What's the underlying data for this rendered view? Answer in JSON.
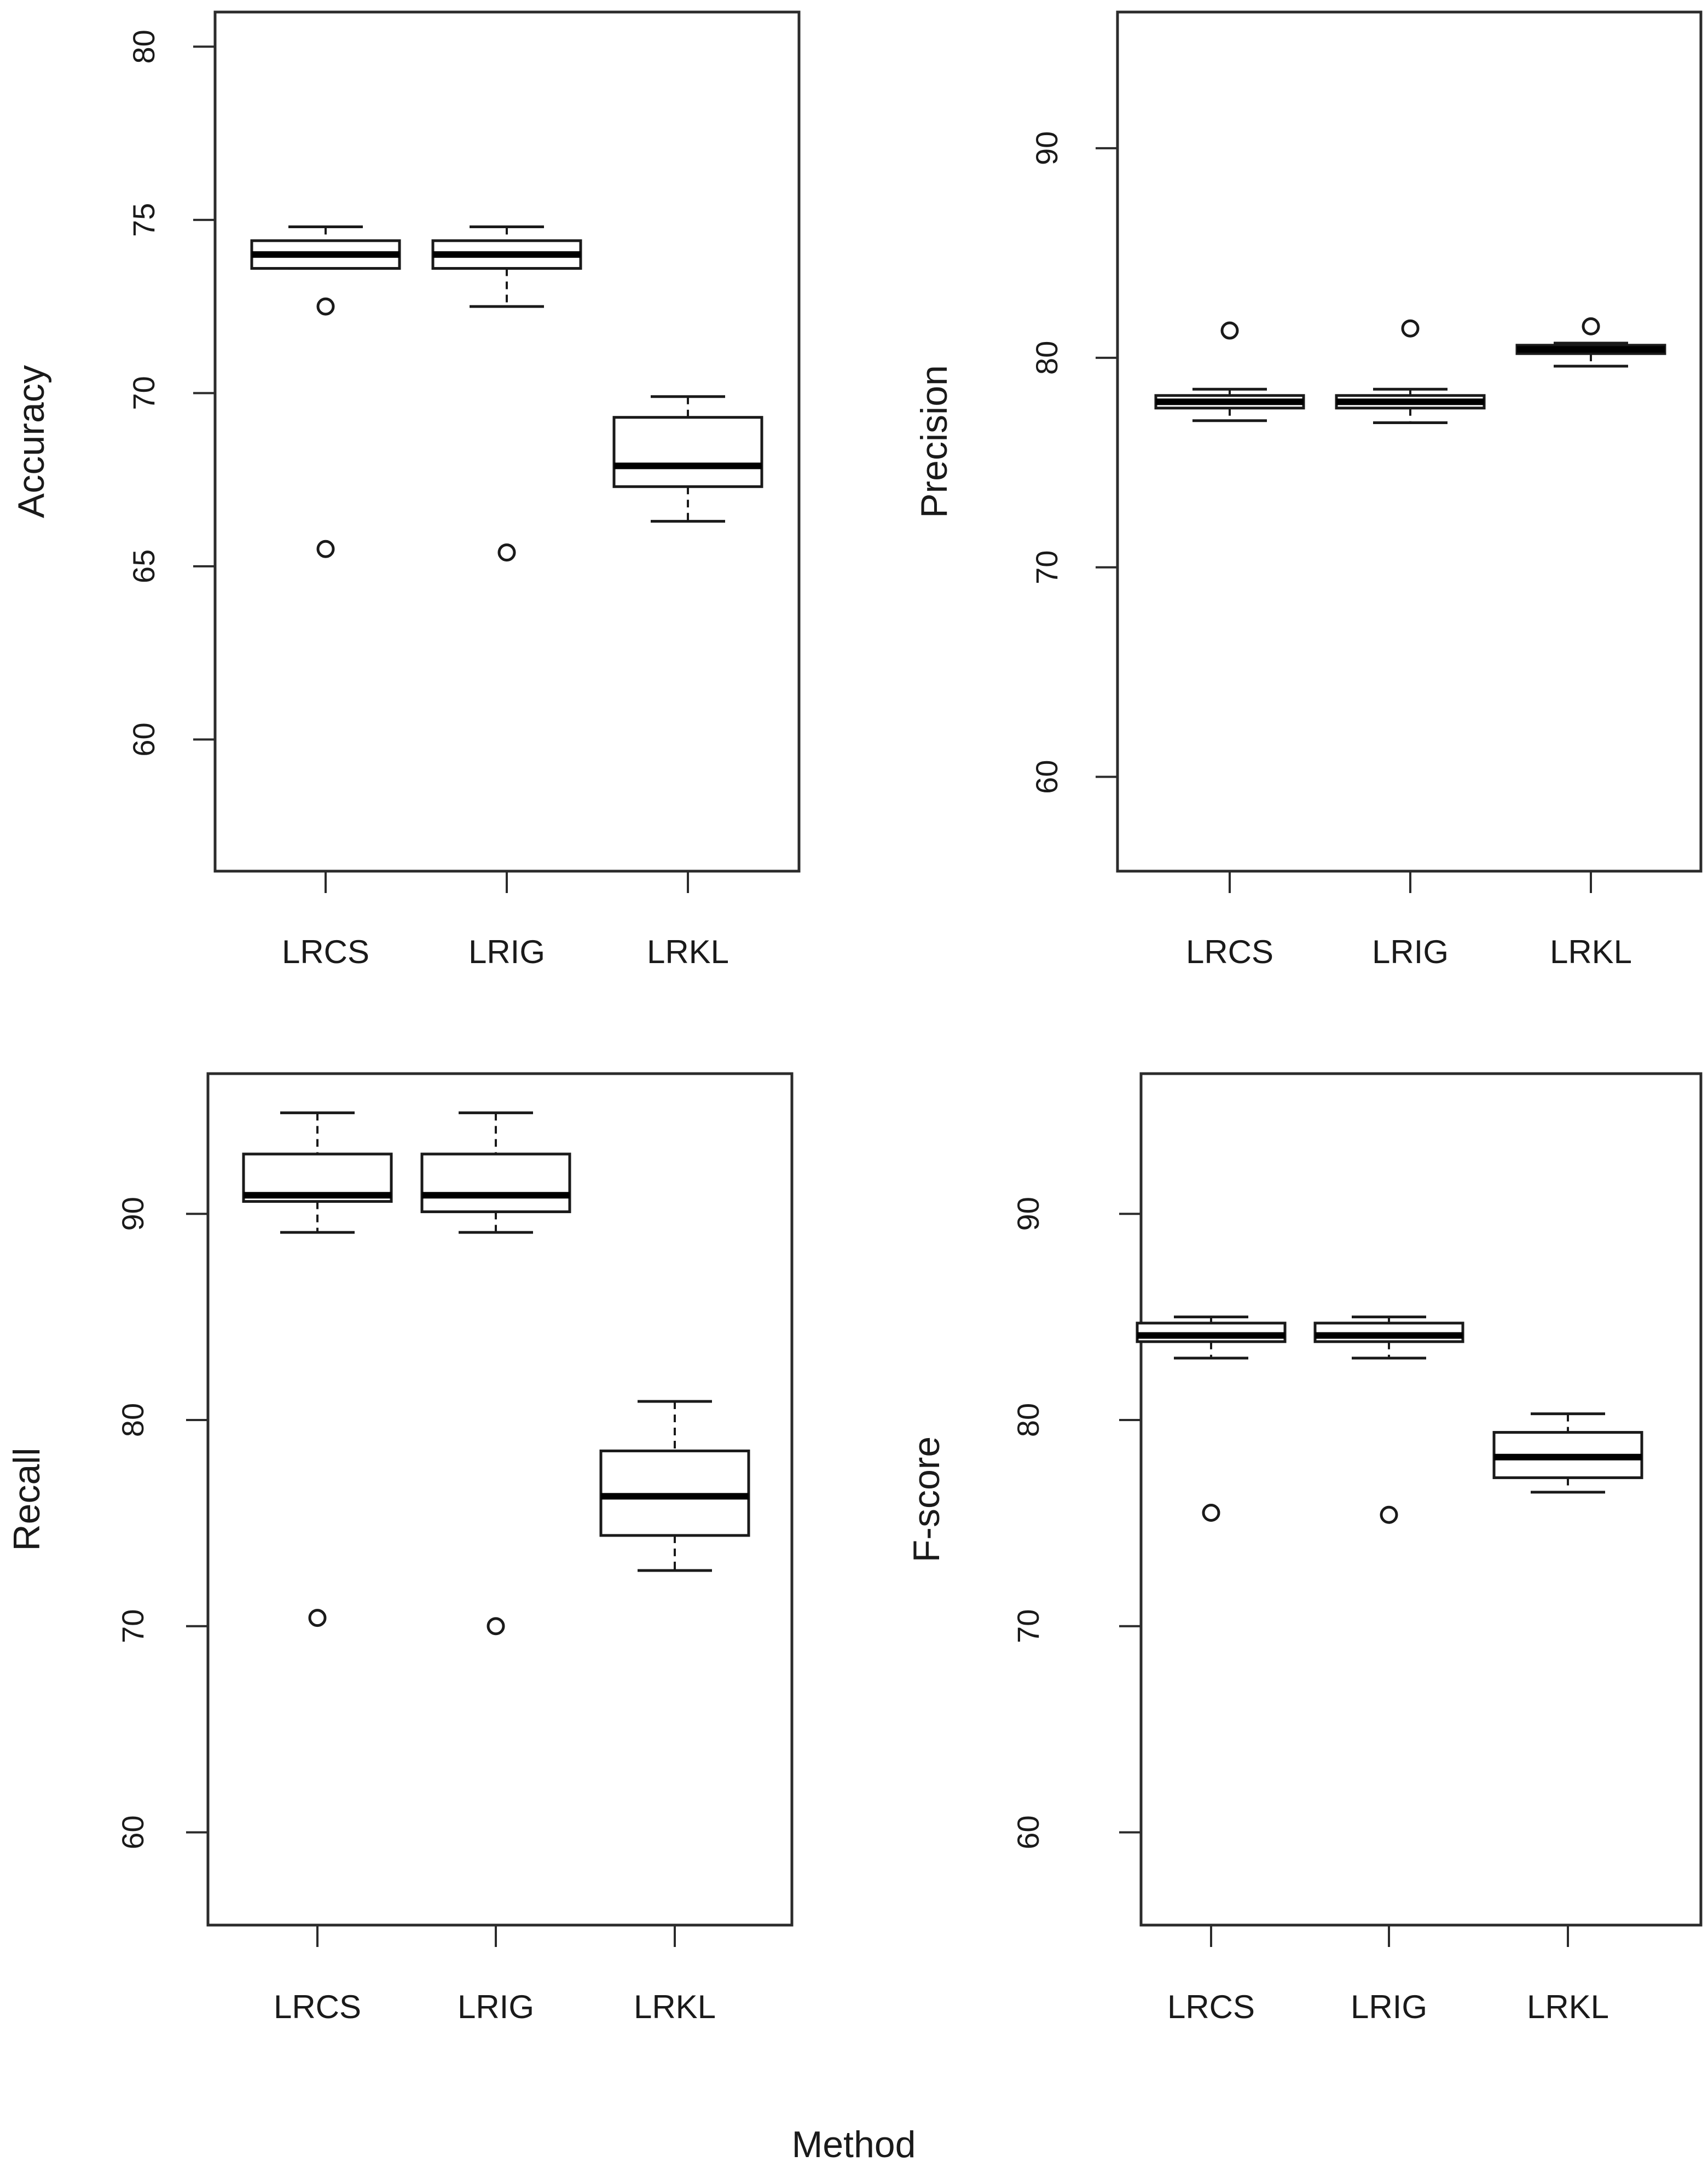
{
  "chart_data": [
    {
      "type": "boxplot",
      "ylabel": "Accuracy",
      "categories": [
        "LRCS",
        "LRIG",
        "LRKL"
      ],
      "ylim": [
        56.2,
        81
      ],
      "yticks": [
        60,
        65,
        70,
        75,
        80
      ],
      "boxes": [
        {
          "category": "LRCS",
          "whisker_low": 73.6,
          "q1": 73.6,
          "median": 74.0,
          "q3": 74.4,
          "whisker_high": 74.8,
          "outliers": [
            72.5,
            65.5
          ]
        },
        {
          "category": "LRIG",
          "whisker_low": 72.5,
          "q1": 73.6,
          "median": 74.0,
          "q3": 74.4,
          "whisker_high": 74.8,
          "outliers": [
            65.4
          ]
        },
        {
          "category": "LRKL",
          "whisker_low": 66.3,
          "q1": 67.3,
          "median": 67.9,
          "q3": 69.3,
          "whisker_high": 69.9,
          "outliers": []
        }
      ]
    },
    {
      "type": "boxplot",
      "ylabel": "Precision",
      "categories": [
        "LRCS",
        "LRIG",
        "LRKL"
      ],
      "ylim": [
        55.5,
        96.5
      ],
      "yticks": [
        60,
        70,
        80,
        90
      ],
      "boxes": [
        {
          "category": "LRCS",
          "whisker_low": 77.0,
          "q1": 77.6,
          "median": 77.9,
          "q3": 78.2,
          "whisker_high": 78.5,
          "outliers": [
            81.3
          ]
        },
        {
          "category": "LRIG",
          "whisker_low": 76.9,
          "q1": 77.6,
          "median": 77.9,
          "q3": 78.2,
          "whisker_high": 78.5,
          "outliers": [
            81.4
          ]
        },
        {
          "category": "LRKL",
          "whisker_low": 79.6,
          "q1": 80.2,
          "median": 80.4,
          "q3": 80.6,
          "whisker_high": 80.7,
          "outliers": [
            81.5
          ]
        }
      ]
    },
    {
      "type": "boxplot",
      "ylabel": "Recall",
      "categories": [
        "LRCS",
        "LRIG",
        "LRKL"
      ],
      "ylim": [
        55.5,
        96.8
      ],
      "yticks": [
        60,
        70,
        80,
        90
      ],
      "boxes": [
        {
          "category": "LRCS",
          "whisker_low": 89.1,
          "q1": 90.6,
          "median": 90.9,
          "q3": 92.9,
          "whisker_high": 94.9,
          "outliers": [
            70.4
          ]
        },
        {
          "category": "LRIG",
          "whisker_low": 89.1,
          "q1": 90.1,
          "median": 90.9,
          "q3": 92.9,
          "whisker_high": 94.9,
          "outliers": [
            70.0
          ]
        },
        {
          "category": "LRKL",
          "whisker_low": 72.7,
          "q1": 74.4,
          "median": 76.3,
          "q3": 78.5,
          "whisker_high": 80.9,
          "outliers": []
        }
      ]
    },
    {
      "type": "boxplot",
      "ylabel": "F-score",
      "categories": [
        "LRCS",
        "LRIG",
        "LRKL"
      ],
      "ylim": [
        55.5,
        96.8
      ],
      "yticks": [
        60,
        70,
        80,
        90
      ],
      "boxes": [
        {
          "category": "LRCS",
          "whisker_low": 83.0,
          "q1": 83.8,
          "median": 84.1,
          "q3": 84.7,
          "whisker_high": 85.0,
          "outliers": [
            75.5
          ]
        },
        {
          "category": "LRIG",
          "whisker_low": 83.0,
          "q1": 83.8,
          "median": 84.1,
          "q3": 84.7,
          "whisker_high": 85.0,
          "outliers": [
            75.4
          ]
        },
        {
          "category": "LRKL",
          "whisker_low": 76.5,
          "q1": 77.2,
          "median": 78.2,
          "q3": 79.4,
          "whisker_high": 80.3,
          "outliers": []
        }
      ]
    }
  ],
  "figure": {
    "xlabel": "Method"
  }
}
